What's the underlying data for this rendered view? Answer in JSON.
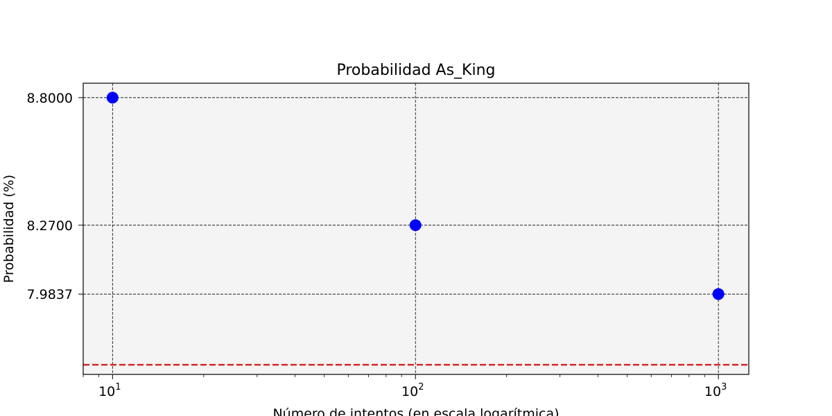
{
  "chart_data": {
    "type": "scatter",
    "title": "Probabilidad As_King",
    "xlabel": "Número de intentos (en escala logarítmica)",
    "ylabel": "Probabilidad (%)",
    "x_scale": "log",
    "grid": true,
    "xlim": [
      8,
      1260
    ],
    "ylim": [
      7.65,
      8.86
    ],
    "x_ticks": [
      {
        "value": 10,
        "base": "10",
        "exp": "1"
      },
      {
        "value": 100,
        "base": "10",
        "exp": "2"
      },
      {
        "value": 1000,
        "base": "10",
        "exp": "3"
      }
    ],
    "y_ticks": [
      {
        "value": 8.8,
        "label": "8.8000"
      },
      {
        "value": 8.27,
        "label": "8.2700"
      },
      {
        "value": 7.9837,
        "label": "7.9837"
      }
    ],
    "series": [
      {
        "color": "#0000ff",
        "x": [
          10,
          100,
          1000
        ],
        "y": [
          8.8,
          8.27,
          7.9837
        ]
      }
    ],
    "reference_line": {
      "y": 7.69,
      "color": "#d62728",
      "style": "dashed"
    },
    "plot_background": "#f4f4f4"
  }
}
